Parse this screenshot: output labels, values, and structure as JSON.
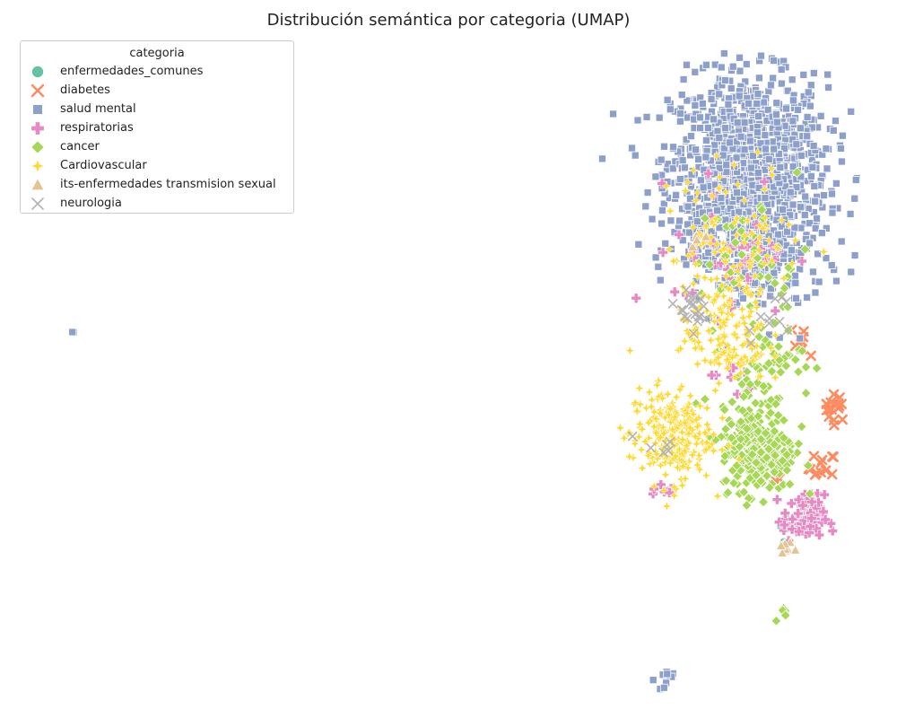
{
  "chart_data": {
    "type": "scatter",
    "title": "Distribución semántica por categoria (UMAP)",
    "xlabel": "",
    "ylabel": "",
    "axes_visible": false,
    "grid": false,
    "legend_title": "categoria",
    "legend_position": "top-left",
    "series": [
      {
        "name": "enfermedades_comunes",
        "color": "#66c2a5",
        "marker": "circle",
        "clusters": [
          {
            "x": 8.3,
            "y": -5.0,
            "spread": 0.15,
            "count": 14
          },
          {
            "x": 8.2,
            "y": -5.8,
            "spread": 0.1,
            "count": 4
          }
        ]
      },
      {
        "name": "diabetes",
        "color": "#fc8d62",
        "marker": "x",
        "clusters": [
          {
            "x": 10.4,
            "y": -0.4,
            "spread": 0.25,
            "count": 16
          },
          {
            "x": 9.8,
            "y": -2.8,
            "spread": 0.3,
            "count": 12
          },
          {
            "x": 9.1,
            "y": 2.3,
            "spread": 0.3,
            "count": 8
          },
          {
            "x": 7.7,
            "y": -3.0,
            "spread": 0.3,
            "count": 7
          }
        ]
      },
      {
        "name": "salud mental",
        "color": "#8da0cb",
        "marker": "square",
        "clusters": [
          {
            "x": 6.6,
            "y": 9.2,
            "spread": 1.7,
            "count": 1150
          },
          {
            "x": 7.5,
            "y": 5.5,
            "spread": 1.2,
            "count": 160
          },
          {
            "x": 5.2,
            "y": 6.8,
            "spread": 1.0,
            "count": 120
          },
          {
            "x": 2.9,
            "y": -11.2,
            "spread": 0.2,
            "count": 12
          },
          {
            "x": -23.0,
            "y": 2.6,
            "spread": 0.05,
            "count": 2
          }
        ]
      },
      {
        "name": "respiratorias",
        "color": "#e78ac3",
        "marker": "plus",
        "clusters": [
          {
            "x": 9.0,
            "y": -4.8,
            "spread": 0.45,
            "count": 90
          },
          {
            "x": 6.0,
            "y": 6.0,
            "spread": 1.3,
            "count": 45
          },
          {
            "x": 5.8,
            "y": 0.5,
            "spread": 0.5,
            "count": 10
          },
          {
            "x": 2.9,
            "y": -3.5,
            "spread": 0.3,
            "count": 6
          }
        ]
      },
      {
        "name": "cancer",
        "color": "#a6d854",
        "marker": "diamond",
        "clusters": [
          {
            "x": 7.0,
            "y": -2.0,
            "spread": 0.8,
            "count": 270
          },
          {
            "x": 7.2,
            "y": 1.2,
            "spread": 0.9,
            "count": 70
          },
          {
            "x": 6.8,
            "y": 5.5,
            "spread": 1.2,
            "count": 45
          },
          {
            "x": 8.1,
            "y": -8.6,
            "spread": 0.15,
            "count": 5
          }
        ]
      },
      {
        "name": "Cardiovascular",
        "color": "#ffd92f",
        "marker": "star",
        "clusters": [
          {
            "x": 3.2,
            "y": -1.5,
            "spread": 0.9,
            "count": 240
          },
          {
            "x": 5.6,
            "y": 2.4,
            "spread": 0.9,
            "count": 130
          },
          {
            "x": 6.0,
            "y": 6.2,
            "spread": 1.5,
            "count": 110
          }
        ]
      },
      {
        "name": "its-enfermedades transmision sexual",
        "color": "#e5c494",
        "marker": "triangle",
        "clusters": [
          {
            "x": 8.3,
            "y": -5.9,
            "spread": 0.2,
            "count": 9
          },
          {
            "x": 4.3,
            "y": 6.4,
            "spread": 0.2,
            "count": 4
          }
        ]
      },
      {
        "name": "neurologia",
        "color": "#b3b3b3",
        "marker": "x-thin",
        "clusters": [
          {
            "x": 4.0,
            "y": 3.5,
            "spread": 0.3,
            "count": 20
          },
          {
            "x": 7.5,
            "y": 3.5,
            "spread": 0.6,
            "count": 10
          },
          {
            "x": 3.0,
            "y": -2.0,
            "spread": 0.5,
            "count": 6
          }
        ]
      }
    ],
    "xlim": [
      -24.5,
      11.5
    ],
    "ylim": [
      -12.0,
      14.0
    ]
  }
}
